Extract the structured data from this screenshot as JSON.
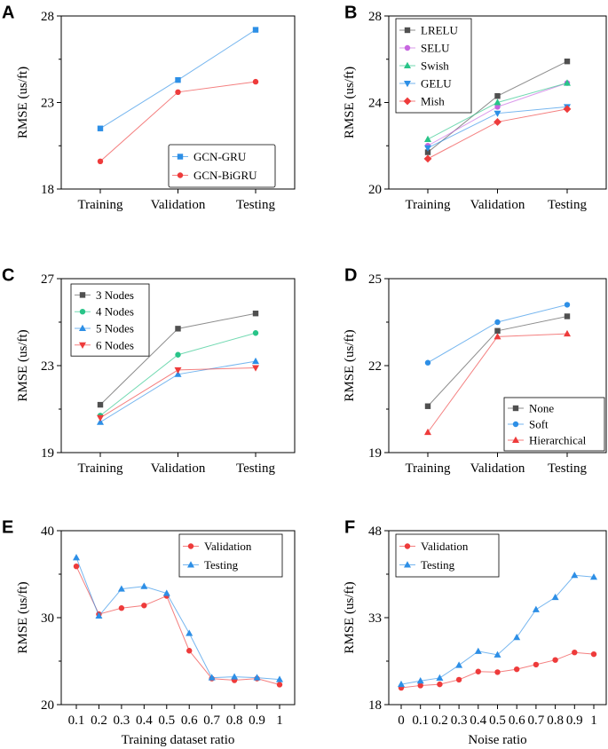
{
  "chart_data": [
    {
      "panel": "A",
      "type": "line",
      "title": "",
      "xlabel": "",
      "ylabel": "RMSE (us/ft)",
      "categories": [
        "Training",
        "Validation",
        "Testing"
      ],
      "ylim": [
        18,
        28
      ],
      "yticks": [
        "18",
        "23",
        "28"
      ],
      "legend_position": "bottom-right",
      "series": [
        {
          "name": "GCN-GRU",
          "color": "#2d8fe6",
          "marker": "square",
          "values": [
            21.5,
            24.3,
            27.2
          ]
        },
        {
          "name": "GCN-BiGRU",
          "color": "#ee3b3b",
          "marker": "circle",
          "values": [
            19.6,
            23.6,
            24.2
          ]
        }
      ]
    },
    {
      "panel": "B",
      "type": "line",
      "title": "",
      "xlabel": "",
      "ylabel": "RMSE (us/ft)",
      "categories": [
        "Training",
        "Validation",
        "Testing"
      ],
      "ylim": [
        20,
        28
      ],
      "yticks": [
        "20",
        "24",
        "28"
      ],
      "legend_position": "top-left",
      "series": [
        {
          "name": "LRELU",
          "color": "#505050",
          "marker": "square",
          "values": [
            21.7,
            24.3,
            25.9
          ]
        },
        {
          "name": "SELU",
          "color": "#c766e0",
          "marker": "circle",
          "values": [
            22.0,
            23.8,
            24.9
          ]
        },
        {
          "name": "Swish",
          "color": "#28c488",
          "marker": "triangle-up",
          "values": [
            22.3,
            24.0,
            24.9
          ]
        },
        {
          "name": "GELU",
          "color": "#2d8fe6",
          "marker": "triangle-down",
          "values": [
            21.9,
            23.5,
            23.8
          ]
        },
        {
          "name": "Mish",
          "color": "#ee3b3b",
          "marker": "diamond",
          "values": [
            21.4,
            23.1,
            23.7
          ]
        }
      ]
    },
    {
      "panel": "C",
      "type": "line",
      "title": "",
      "xlabel": "",
      "ylabel": "RMSE (us/ft)",
      "categories": [
        "Training",
        "Validation",
        "Testing"
      ],
      "ylim": [
        19,
        27
      ],
      "yticks": [
        "19",
        "23",
        "27"
      ],
      "legend_position": "top-left",
      "series": [
        {
          "name": "3 Nodes",
          "color": "#505050",
          "marker": "square",
          "values": [
            21.2,
            24.7,
            25.4
          ]
        },
        {
          "name": "4 Nodes",
          "color": "#28c488",
          "marker": "circle",
          "values": [
            20.7,
            23.5,
            24.5
          ]
        },
        {
          "name": "5 Nodes",
          "color": "#2d8fe6",
          "marker": "triangle-up",
          "values": [
            20.4,
            22.6,
            23.2
          ]
        },
        {
          "name": "6 Nodes",
          "color": "#ee3b3b",
          "marker": "triangle-down",
          "values": [
            20.6,
            22.8,
            22.9
          ]
        }
      ]
    },
    {
      "panel": "D",
      "type": "line",
      "title": "",
      "xlabel": "",
      "ylabel": "RMSE (us/ft)",
      "categories": [
        "Training",
        "Validation",
        "Testing"
      ],
      "ylim": [
        19,
        25
      ],
      "yticks": [
        "19",
        "22",
        "25"
      ],
      "legend_position": "bottom-right",
      "series": [
        {
          "name": "None",
          "color": "#505050",
          "marker": "square",
          "values": [
            20.6,
            23.2,
            23.7
          ]
        },
        {
          "name": "Soft",
          "color": "#2d8fe6",
          "marker": "circle",
          "values": [
            22.1,
            23.5,
            24.1
          ]
        },
        {
          "name": "Hierarchical",
          "color": "#ee3b3b",
          "marker": "triangle-up",
          "values": [
            19.7,
            23.0,
            23.1
          ]
        }
      ]
    },
    {
      "panel": "E",
      "type": "line",
      "title": "",
      "xlabel": "Training dataset ratio",
      "ylabel": "RMSE (us/ft)",
      "categories": [
        "0.1",
        "0.2",
        "0.3",
        "0.4",
        "0.5",
        "0.6",
        "0.7",
        "0.8",
        "0.9",
        "1"
      ],
      "ylim": [
        20,
        40
      ],
      "yticks": [
        "20",
        "30",
        "40"
      ],
      "legend_position": "top-right",
      "series": [
        {
          "name": "Validation",
          "color": "#ee3b3b",
          "marker": "circle",
          "values": [
            35.9,
            30.4,
            31.1,
            31.4,
            32.5,
            26.2,
            23.0,
            22.8,
            23.0,
            22.3
          ]
        },
        {
          "name": "Testing",
          "color": "#2d8fe6",
          "marker": "triangle-up",
          "values": [
            36.9,
            30.2,
            33.3,
            33.6,
            32.8,
            28.2,
            23.1,
            23.2,
            23.1,
            22.9
          ]
        }
      ]
    },
    {
      "panel": "F",
      "type": "line",
      "title": "",
      "xlabel": "Noise ratio",
      "ylabel": "RMSE (us/ft)",
      "categories": [
        "0",
        "0.1",
        "0.2",
        "0.3",
        "0.4",
        "0.5",
        "0.6",
        "0.7",
        "0.8",
        "0.9",
        "1"
      ],
      "ylim": [
        18,
        48
      ],
      "yticks": [
        "18",
        "33",
        "48"
      ],
      "legend_position": "top-left",
      "series": [
        {
          "name": "Validation",
          "color": "#ee3b3b",
          "marker": "circle",
          "values": [
            20.9,
            21.3,
            21.5,
            22.3,
            23.7,
            23.6,
            24.1,
            24.9,
            25.7,
            27.0,
            26.7
          ]
        },
        {
          "name": "Testing",
          "color": "#2d8fe6",
          "marker": "triangle-up",
          "values": [
            21.5,
            22.1,
            22.6,
            24.8,
            27.2,
            26.6,
            29.6,
            34.4,
            36.5,
            40.3,
            40.0
          ]
        }
      ]
    }
  ]
}
